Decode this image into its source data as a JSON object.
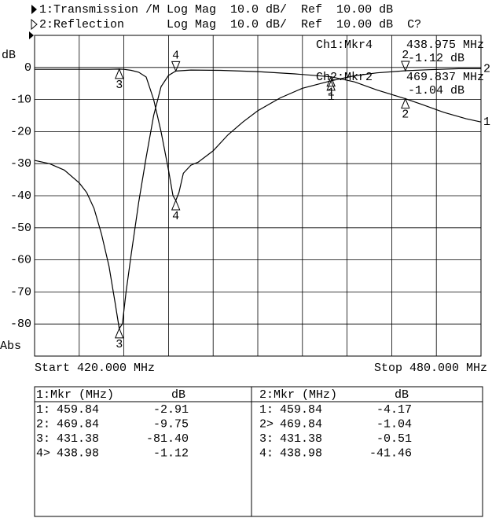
{
  "chart_data": {
    "type": "line",
    "header_lines": [
      "1:Transmission /M Log Mag  10.0 dB/  Ref  10.00 dB",
      "2:Reflection      Log Mag  10.0 dB/  Ref  10.00 dB  C?"
    ],
    "y_unit_label": "dB",
    "format_label": "Abs",
    "start_label": "Start 420.000 MHz",
    "stop_label": "Stop 480.000 MHz",
    "xlim": [
      420,
      480
    ],
    "ylim": [
      -90,
      10
    ],
    "yticks": [
      0,
      -10,
      -20,
      -30,
      -40,
      -50,
      -60,
      -70,
      -80
    ],
    "x_divisions": 10,
    "grid": true,
    "color": "#000000",
    "readouts": [
      [
        "Ch1:Mkr4",
        "438.975 MHz",
        "-1.12 dB"
      ],
      [
        "Ch2:Mkr2",
        "469.837 MHz",
        "-1.04 dB"
      ]
    ],
    "series": [
      {
        "name": "1",
        "color": "#000000",
        "x": [
          420,
          422,
          424,
          426,
          427,
          428,
          429,
          430,
          430.8,
          431.38,
          431.8,
          432.3,
          433,
          434,
          435,
          436,
          437,
          438,
          438.98,
          441,
          445,
          450,
          455,
          459.84,
          463,
          466,
          469.84,
          472,
          475,
          478,
          480
        ],
        "values": [
          -29,
          -30,
          -32,
          -36,
          -39,
          -44,
          -52,
          -62,
          -73,
          -81.4,
          -80,
          -70,
          -58,
          -42,
          -28,
          -15,
          -6,
          -2.5,
          -1.12,
          -0.8,
          -0.9,
          -1.3,
          -2,
          -2.91,
          -4.5,
          -7,
          -9.75,
          -11.5,
          -14,
          -16,
          -17
        ],
        "markers": [
          {
            "label": "1",
            "x": 459.84,
            "value": -2.91
          },
          {
            "label": "2",
            "x": 469.84,
            "value": -9.75
          },
          {
            "label": "3",
            "x": 431.38,
            "value": -81.4
          },
          {
            "label": "4",
            "x": 438.98,
            "value": -1.12,
            "active": true
          }
        ]
      },
      {
        "name": "2",
        "color": "#000000",
        "x": [
          420,
          425,
          430,
          431.38,
          432,
          433,
          434,
          435,
          436,
          437,
          438,
          438.6,
          438.98,
          439.4,
          440,
          441,
          442,
          444,
          446,
          448,
          450,
          453,
          456,
          459.84,
          463,
          466,
          469.84,
          473,
          477,
          480
        ],
        "values": [
          -0.6,
          -0.6,
          -0.6,
          -0.51,
          -0.6,
          -0.9,
          -1.5,
          -3,
          -10,
          -20,
          -32,
          -40,
          -41.46,
          -39,
          -33,
          -30.5,
          -29.5,
          -26,
          -21,
          -17,
          -13.5,
          -9.5,
          -6.5,
          -4.17,
          -2.6,
          -1.7,
          -1.04,
          -0.7,
          -0.4,
          -0.4
        ],
        "markers": [
          {
            "label": "1",
            "x": 459.84,
            "value": -4.17
          },
          {
            "label": "2",
            "x": 469.84,
            "value": -1.04,
            "active": true
          },
          {
            "label": "3",
            "x": 431.38,
            "value": -0.51
          },
          {
            "label": "4",
            "x": 438.98,
            "value": -41.46
          }
        ]
      }
    ]
  },
  "marker_tables": [
    {
      "header": [
        "1:Mkr (MHz)",
        "dB"
      ],
      "rows": [
        [
          "1:",
          "459.84",
          "-2.91"
        ],
        [
          "2:",
          "469.84",
          "-9.75"
        ],
        [
          "3:",
          "431.38",
          "-81.40"
        ],
        [
          "4>",
          "438.98",
          "-1.12"
        ]
      ]
    },
    {
      "header": [
        "2:Mkr (MHz)",
        "dB"
      ],
      "rows": [
        [
          "1:",
          "459.84",
          "-4.17"
        ],
        [
          "2>",
          "469.84",
          "-1.04"
        ],
        [
          "3:",
          "431.38",
          "-0.51"
        ],
        [
          "4:",
          "438.98",
          "-41.46"
        ]
      ]
    }
  ]
}
